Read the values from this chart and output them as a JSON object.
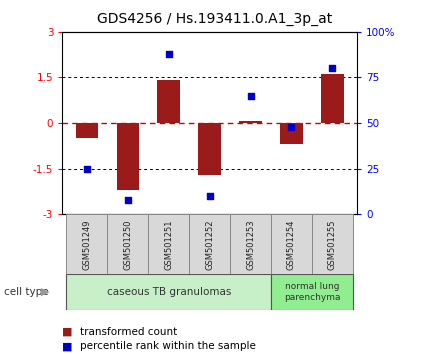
{
  "title": "GDS4256 / Hs.193411.0.A1_3p_at",
  "samples": [
    "GSM501249",
    "GSM501250",
    "GSM501251",
    "GSM501252",
    "GSM501253",
    "GSM501254",
    "GSM501255"
  ],
  "transformed_count": [
    -0.5,
    -2.2,
    1.4,
    -1.7,
    0.05,
    -0.7,
    1.6
  ],
  "percentile_rank": [
    25,
    8,
    88,
    10,
    65,
    48,
    80
  ],
  "ylim_left": [
    -3,
    3
  ],
  "ylim_right": [
    0,
    100
  ],
  "yticks_left": [
    -3,
    -1.5,
    0,
    1.5,
    3
  ],
  "yticks_right": [
    0,
    25,
    50,
    75,
    100
  ],
  "ytick_labels_right": [
    "0",
    "25",
    "50",
    "75",
    "100%"
  ],
  "bar_color": "#9B1B1B",
  "dot_color": "#0000CC",
  "hline_color": "#CC0000",
  "dotline_color": "black",
  "group1_label": "caseous TB granulomas",
  "group2_label": "normal lung\nparenchyma",
  "group1_indices": [
    0,
    1,
    2,
    3,
    4
  ],
  "group2_indices": [
    5,
    6
  ],
  "cell_type_label": "cell type",
  "legend_bar_label": "transformed count",
  "legend_dot_label": "percentile rank within the sample",
  "group1_color": "#C8F0C8",
  "group2_color": "#90EE90",
  "title_fontsize": 10,
  "tick_fontsize": 7.5,
  "bar_width": 0.55
}
